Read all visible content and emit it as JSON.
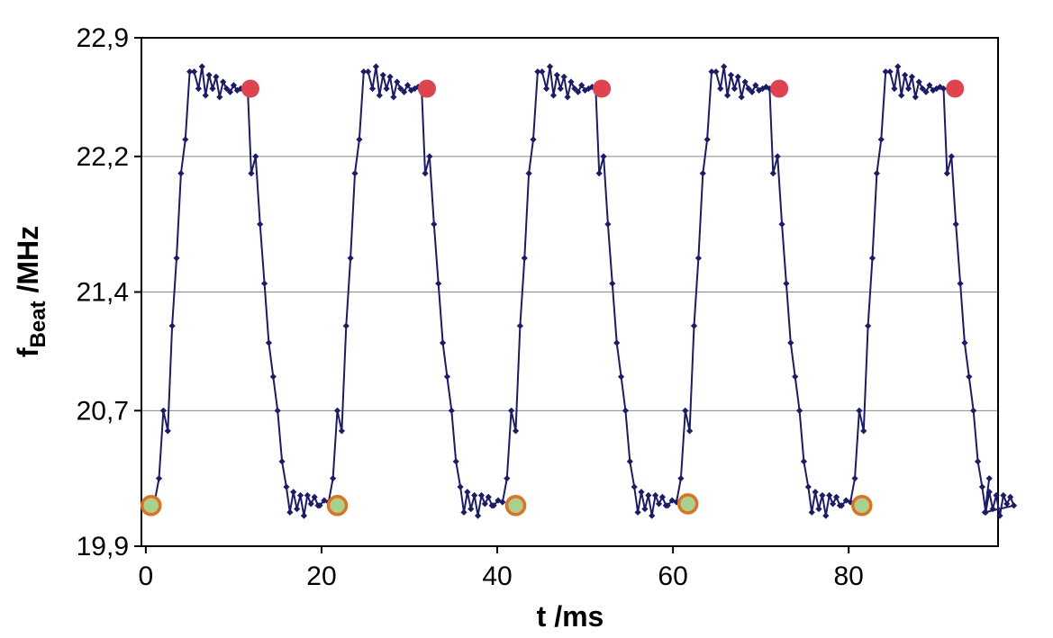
{
  "chart_data": {
    "type": "scatter",
    "xlabel": "t /ms",
    "ylabel_main": "f",
    "ylabel_sub": "Beat",
    "ylabel_unit": " /MHz",
    "xlim": [
      -0.5,
      97
    ],
    "ylim": [
      19.9,
      22.9
    ],
    "xticks": [
      0,
      20,
      40,
      60,
      80
    ],
    "yticks": [
      19.9,
      20.7,
      21.4,
      22.2,
      22.9
    ],
    "ytick_labels": [
      "19,9",
      "20,7",
      "21,4",
      "22,2",
      "22,9"
    ],
    "xtick_labels": [
      "0",
      "20",
      "40",
      "60",
      "80"
    ],
    "grid": "horizontal",
    "colors": {
      "line": "#1a1a6e",
      "red_marker": "#e0424e",
      "green_marker": "#a9d18e",
      "green_marker_edge": "#e2701f"
    },
    "series": [
      {
        "marker": "diamond",
        "period": 19.8,
        "repeats": 5,
        "base_points": [
          [
            0.0,
            20.14
          ],
          [
            0.5,
            20.17
          ],
          [
            1.0,
            20.16
          ],
          [
            1.5,
            20.3
          ],
          [
            2.0,
            20.7
          ],
          [
            2.5,
            20.58
          ],
          [
            3.0,
            21.2
          ],
          [
            3.5,
            21.6
          ],
          [
            4.0,
            22.1
          ],
          [
            4.5,
            22.3
          ],
          [
            5.0,
            22.7
          ],
          [
            5.5,
            22.7
          ],
          [
            6.0,
            22.6
          ],
          [
            6.4,
            22.73
          ],
          [
            6.8,
            22.56
          ],
          [
            7.2,
            22.68
          ],
          [
            7.6,
            22.6
          ],
          [
            8.0,
            22.67
          ],
          [
            8.4,
            22.55
          ],
          [
            8.8,
            22.64
          ],
          [
            9.2,
            22.6
          ],
          [
            9.6,
            22.58
          ],
          [
            10.0,
            22.62
          ],
          [
            10.4,
            22.59
          ],
          [
            10.8,
            22.6
          ],
          [
            11.2,
            22.61
          ],
          [
            11.6,
            22.6
          ],
          [
            12.0,
            22.1
          ],
          [
            12.5,
            22.2
          ],
          [
            13.0,
            21.8
          ],
          [
            13.5,
            21.45
          ],
          [
            14.0,
            21.1
          ],
          [
            14.5,
            20.9
          ],
          [
            15.0,
            20.7
          ],
          [
            15.5,
            20.4
          ],
          [
            16.0,
            20.25
          ],
          [
            16.4,
            20.1
          ],
          [
            16.8,
            20.22
          ],
          [
            17.2,
            20.12
          ],
          [
            17.6,
            20.2
          ],
          [
            18.0,
            20.08
          ],
          [
            18.4,
            20.2
          ],
          [
            18.8,
            20.15
          ],
          [
            19.2,
            20.19
          ],
          [
            19.6,
            20.14
          ]
        ]
      }
    ],
    "highlight_red": [
      [
        11.9,
        22.6
      ],
      [
        32.0,
        22.6
      ],
      [
        51.9,
        22.6
      ],
      [
        72.1,
        22.6
      ],
      [
        92.1,
        22.6
      ]
    ],
    "highlight_green": [
      [
        0.6,
        20.14
      ],
      [
        21.8,
        20.14
      ],
      [
        42.1,
        20.14
      ],
      [
        61.7,
        20.15
      ],
      [
        81.5,
        20.14
      ]
    ]
  }
}
